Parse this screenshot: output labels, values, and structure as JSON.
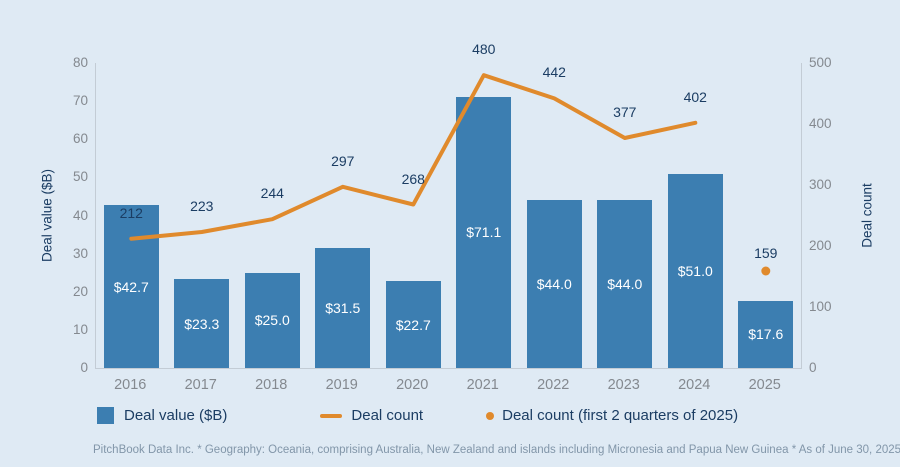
{
  "chart_data": {
    "type": "bar",
    "categories": [
      "2016",
      "2017",
      "2018",
      "2019",
      "2020",
      "2021",
      "2022",
      "2023",
      "2024",
      "2025"
    ],
    "series": [
      {
        "name": "Deal value ($B)",
        "type": "bar",
        "axis": "left",
        "values": [
          42.7,
          23.3,
          25.0,
          31.5,
          22.7,
          71.1,
          44.0,
          44.0,
          51.0,
          17.6
        ],
        "labels": [
          "$42.7",
          "$23.3",
          "$25.0",
          "$31.5",
          "$22.7",
          "$71.1",
          "$44.0",
          "$44.0",
          "$51.0",
          "$17.6"
        ]
      },
      {
        "name": "Deal count",
        "type": "line",
        "axis": "right",
        "values": [
          212,
          223,
          244,
          297,
          268,
          480,
          442,
          377,
          402
        ],
        "labels": [
          "212",
          "223",
          "244",
          "297",
          "268",
          "480",
          "442",
          "377",
          "402"
        ]
      },
      {
        "name": "Deal count (first 2 quarters of 2025)",
        "type": "point",
        "axis": "right",
        "category_index": 9,
        "value": 159,
        "label": "159"
      }
    ],
    "left_axis": {
      "label": "Deal value ($B)",
      "min": 0,
      "max": 80,
      "step": 10,
      "ticks": [
        "0",
        "10",
        "20",
        "30",
        "40",
        "50",
        "60",
        "70",
        "80"
      ]
    },
    "right_axis": {
      "label": "Deal count",
      "min": 0,
      "max": 500,
      "step": 100,
      "ticks": [
        "0",
        "100",
        "200",
        "300",
        "400",
        "500"
      ]
    },
    "grid": false,
    "legend_position": "bottom"
  },
  "legend": {
    "items": [
      {
        "swatch": "square",
        "label": "Deal value ($B)"
      },
      {
        "swatch": "line",
        "label": "Deal count"
      },
      {
        "swatch": "dot",
        "label": "Deal count (first 2 quarters of 2025)"
      }
    ]
  },
  "footer": "PitchBook Data Inc. * Geography: Oceania, comprising Australia, New Zealand and islands including Micronesia and Papua New Guinea * As of June 30, 2025",
  "colors": {
    "background": "#dfeaf4",
    "bar": "#3c7eb1",
    "line": "#e08a2c",
    "navy_text": "#1b3d63",
    "axis_text": "#84898f",
    "footer_text": "#8296a9",
    "axis_line": "#c3ccd5",
    "bar_label_text": "#ffffff"
  }
}
